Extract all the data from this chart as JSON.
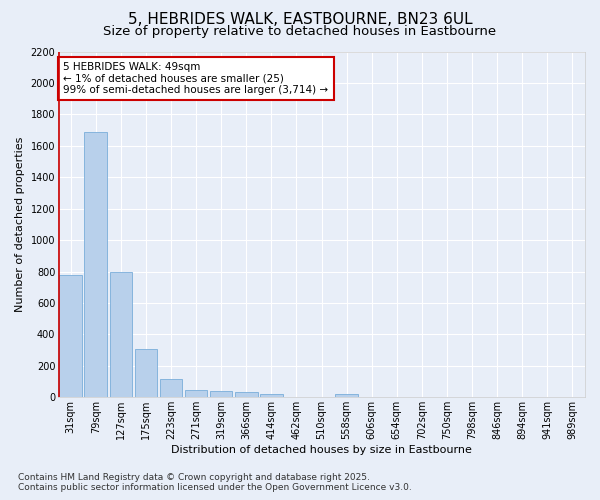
{
  "title_line1": "5, HEBRIDES WALK, EASTBOURNE, BN23 6UL",
  "title_line2": "Size of property relative to detached houses in Eastbourne",
  "xlabel": "Distribution of detached houses by size in Eastbourne",
  "ylabel": "Number of detached properties",
  "bar_labels": [
    "31sqm",
    "79sqm",
    "127sqm",
    "175sqm",
    "223sqm",
    "271sqm",
    "319sqm",
    "366sqm",
    "414sqm",
    "462sqm",
    "510sqm",
    "558sqm",
    "606sqm",
    "654sqm",
    "702sqm",
    "750sqm",
    "798sqm",
    "846sqm",
    "894sqm",
    "941sqm",
    "989sqm"
  ],
  "bar_values": [
    775,
    1690,
    800,
    305,
    115,
    45,
    38,
    35,
    22,
    5,
    3,
    22,
    3,
    2,
    2,
    1,
    1,
    1,
    0,
    0,
    0
  ],
  "bar_color": "#b8d0eb",
  "bar_edge_color": "#7aadda",
  "annotation_box_text": "5 HEBRIDES WALK: 49sqm\n← 1% of detached houses are smaller (25)\n99% of semi-detached houses are larger (3,714) →",
  "annotation_box_color": "#ffffff",
  "annotation_box_edge_color": "#cc0000",
  "vline_color": "#cc0000",
  "ylim": [
    0,
    2200
  ],
  "yticks": [
    0,
    200,
    400,
    600,
    800,
    1000,
    1200,
    1400,
    1600,
    1800,
    2000,
    2200
  ],
  "bg_color": "#e8eef8",
  "grid_color": "#ffffff",
  "footer_line1": "Contains HM Land Registry data © Crown copyright and database right 2025.",
  "footer_line2": "Contains public sector information licensed under the Open Government Licence v3.0.",
  "title_fontsize": 11,
  "subtitle_fontsize": 9.5,
  "axis_label_fontsize": 8,
  "tick_fontsize": 7,
  "annotation_fontsize": 7.5,
  "footer_fontsize": 6.5
}
